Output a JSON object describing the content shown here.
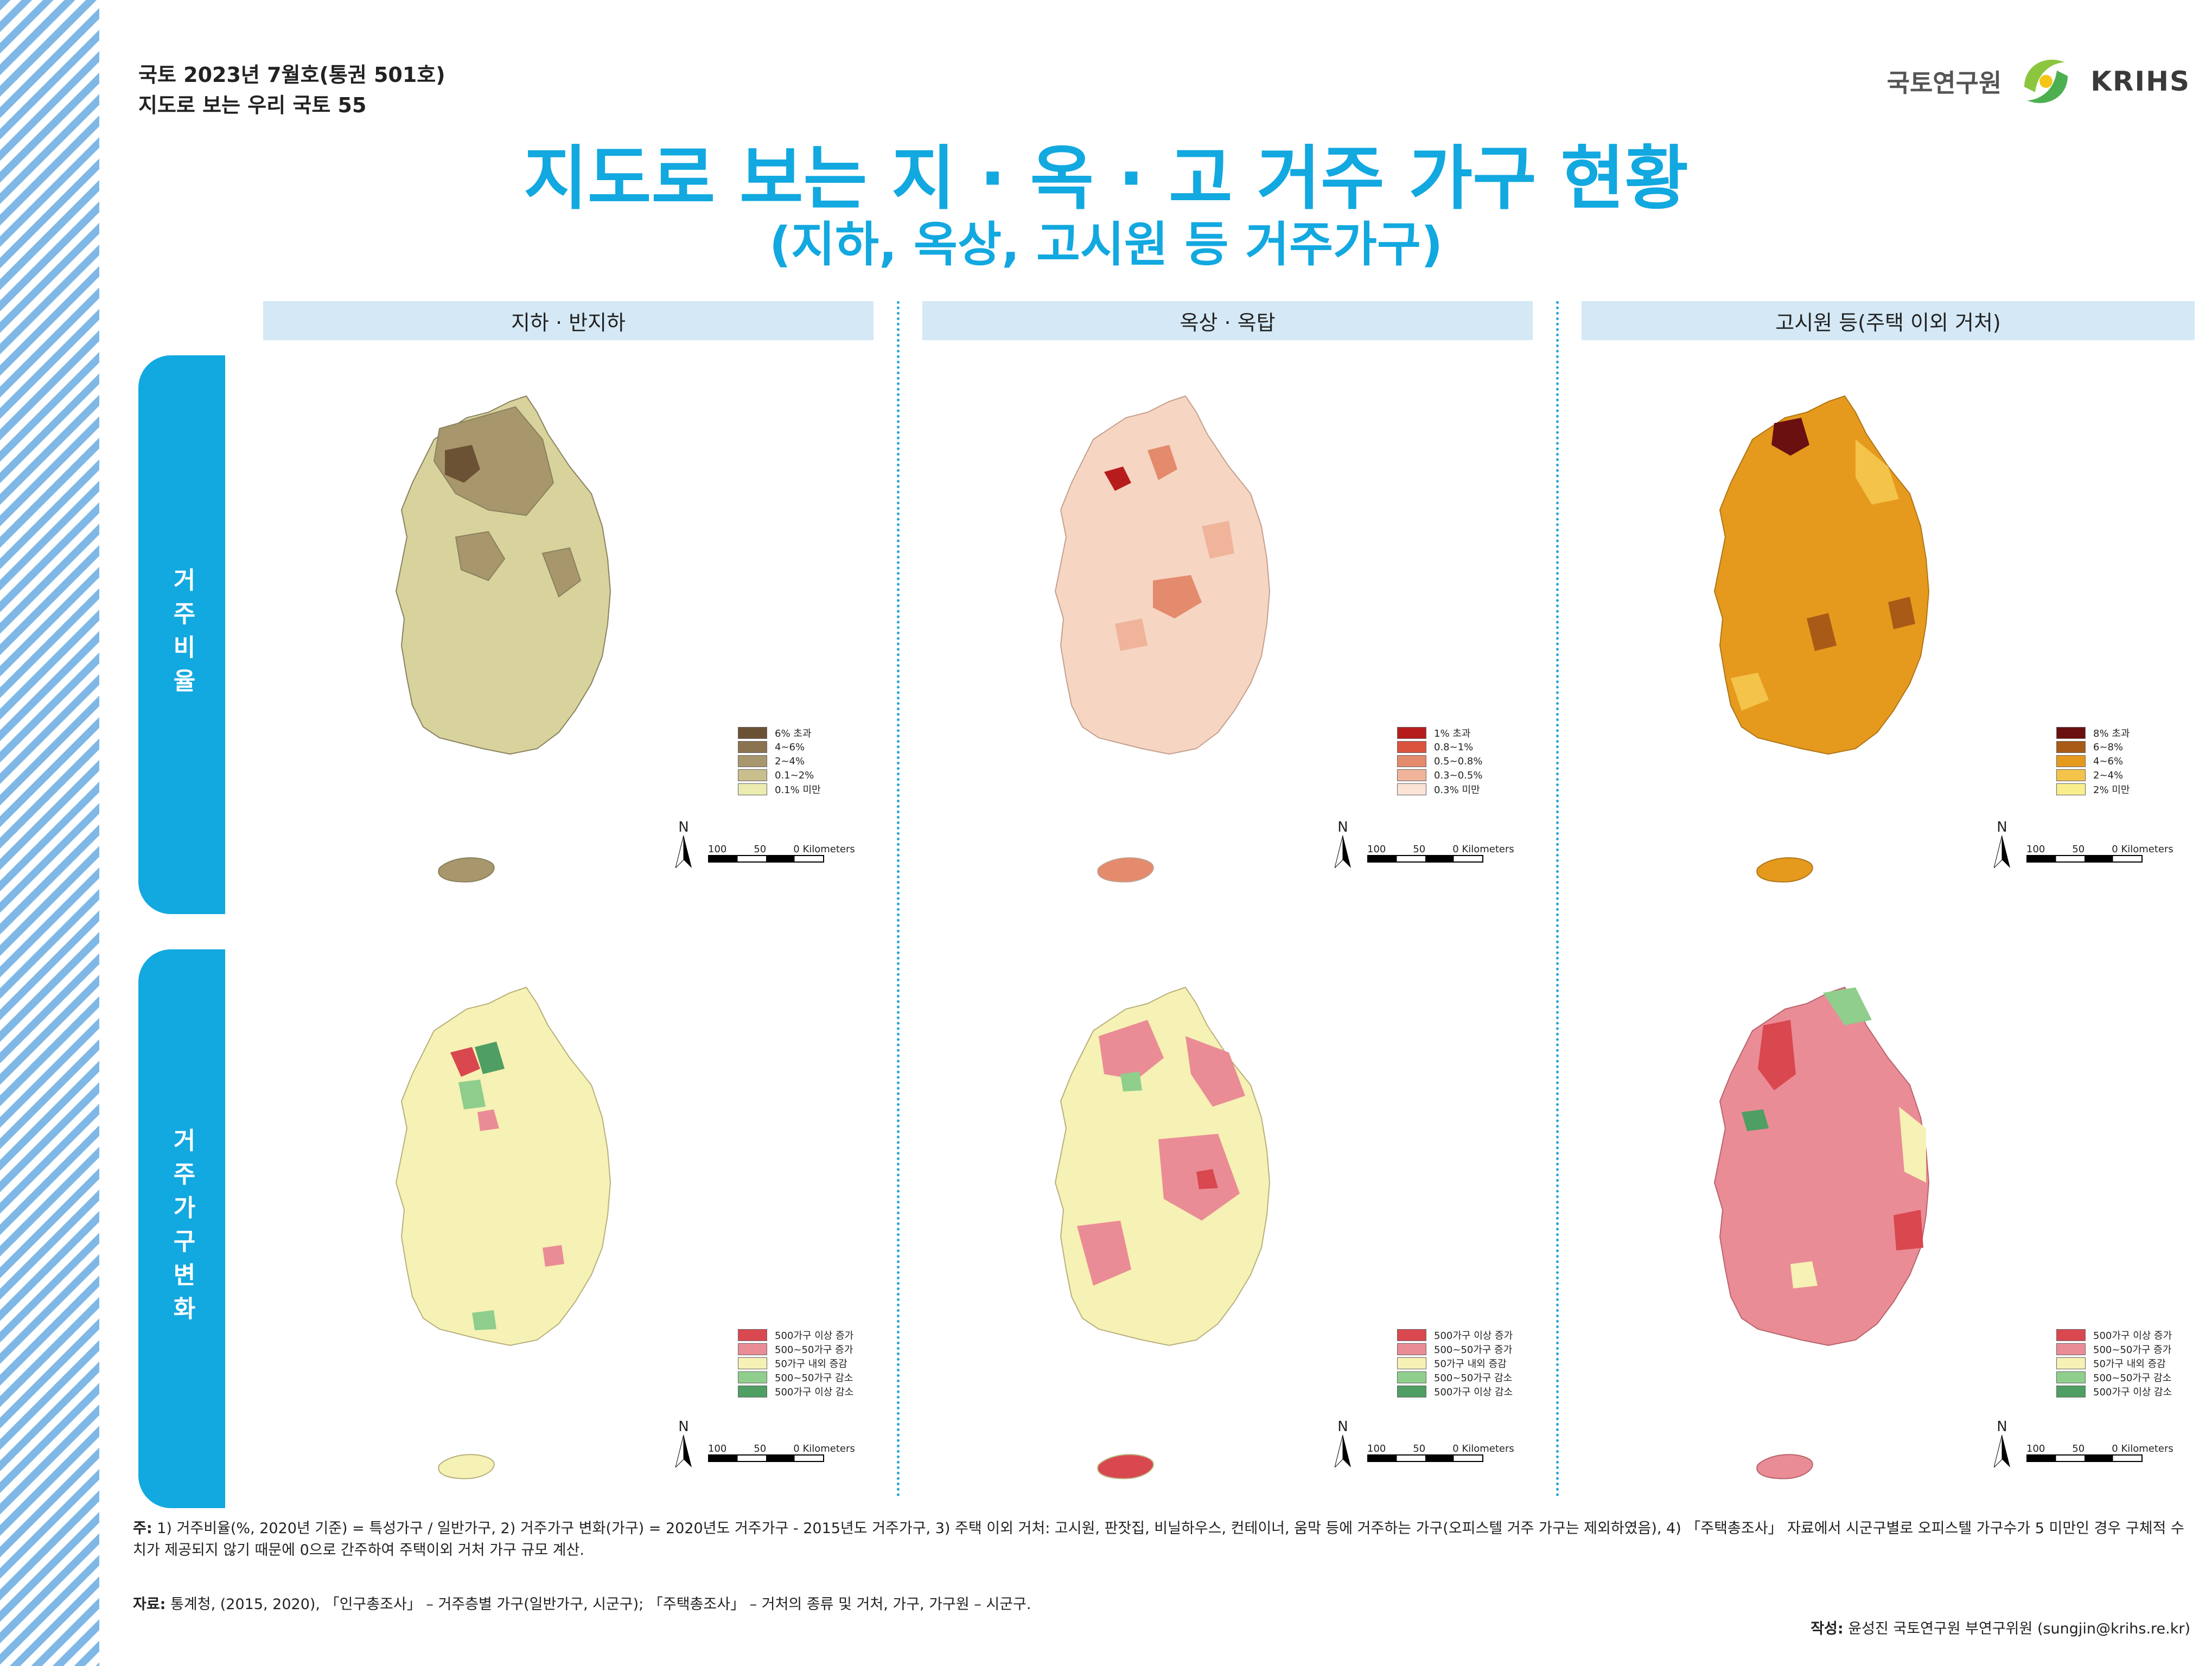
{
  "header": {
    "issue_line1": "국토 2023년 7월호(통권 501호)",
    "issue_line2": "지도로 보는 우리 국토 55"
  },
  "brand": {
    "korean": "국토연구원",
    "english": "KRIHS",
    "icon": "krihs-logo-icon"
  },
  "title": "지도로 보는 지 · 옥 · 고 거주 가구 현황",
  "subtitle": "(지하, 옥상, 고시원 등 거주가구)",
  "columns": [
    "지하 · 반지하",
    "옥상 · 옥탑",
    "고시원 등(주택 이외 거처)"
  ],
  "rows": [
    "거주비율",
    "거주가구변화"
  ],
  "legends": {
    "basement_ratio": {
      "labels": [
        "6% 초과",
        "4~6%",
        "2~4%",
        "0.1~2%",
        "0.1% 미만"
      ],
      "colors": [
        "#6b5234",
        "#8c7350",
        "#a8966c",
        "#c9bf8c",
        "#ecebb0"
      ]
    },
    "rooftop_ratio": {
      "labels": [
        "1% 초과",
        "0.8~1%",
        "0.5~0.8%",
        "0.3~0.5%",
        "0.3% 미만"
      ],
      "colors": [
        "#b71c1c",
        "#d9533f",
        "#e48a6d",
        "#efb49a",
        "#fbe3d5"
      ]
    },
    "gosiwon_ratio": {
      "labels": [
        "8% 초과",
        "6~8%",
        "4~6%",
        "2~4%",
        "2% 미만"
      ],
      "colors": [
        "#6b1010",
        "#a85a16",
        "#e59a1e",
        "#f4c34a",
        "#f8ef8c"
      ]
    },
    "change": {
      "labels": [
        "500가구 이상 증가",
        "500~50가구 증가",
        "50가구 내외 증감",
        "500~50가구 감소",
        "500가구 이상 감소"
      ],
      "colors": [
        "#d9474f",
        "#ea8c95",
        "#f6f1b4",
        "#8fce8c",
        "#4f9e63"
      ]
    }
  },
  "scalebar": {
    "labels": [
      "100",
      "50",
      "0 Kilometers"
    ],
    "north": "N"
  },
  "notes": {
    "label": "주:",
    "text": "1) 거주비율(%, 2020년 기준) = 특성가구 / 일반가구, 2) 거주가구 변화(가구) = 2020년도 거주가구 - 2015년도 거주가구, 3) 주택 이외 거처: 고시원, 판잣집, 비닐하우스, 컨테이너, 움막 등에 거주하는 가구(오피스텔 거주 가구는 제외하였음), 4) 「주택총조사」 자료에서 시군구별로 오피스텔 가구수가 5 미만인 경우 구체적 수치가 제공되지 않기 때문에 0으로 간주하여 주택이외 거처 가구 규모 계산."
  },
  "source": {
    "label": "자료:",
    "text": "통계청, (2015, 2020), 「인구총조사」 – 거주층별 가구(일반가구, 시군구); 「주택총조사」 – 거처의 종류 및 거처, 가구, 가구원 – 시군구."
  },
  "author": {
    "label": "작성:",
    "text": "윤성진 국토연구원 부연구위원 (sungjin@krihs.re.kr)"
  }
}
